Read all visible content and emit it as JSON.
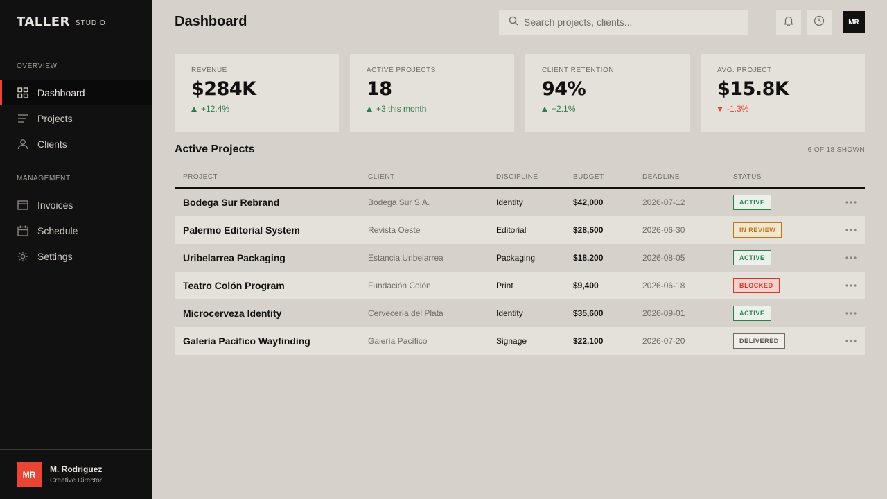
{
  "brand": {
    "name": "TALLER",
    "sub": "STUDIO"
  },
  "sidebar": {
    "sections": [
      {
        "label": "OVERVIEW",
        "items": [
          {
            "label": "Dashboard",
            "icon": "grid-icon",
            "active": true
          },
          {
            "label": "Projects",
            "icon": "list-icon"
          },
          {
            "label": "Clients",
            "icon": "person-icon"
          }
        ]
      },
      {
        "label": "MANAGEMENT",
        "items": [
          {
            "label": "Invoices",
            "icon": "invoice-icon"
          },
          {
            "label": "Schedule",
            "icon": "calendar-icon"
          },
          {
            "label": "Settings",
            "icon": "gear-icon"
          }
        ]
      }
    ],
    "user": {
      "initials": "MR",
      "name": "M. Rodriguez",
      "role": "Creative Director"
    }
  },
  "header": {
    "title": "Dashboard",
    "search_placeholder": "Search projects, clients...",
    "avatar_initials": "MR"
  },
  "kpis": [
    {
      "label": "REVENUE",
      "value": "$284K",
      "delta": "+12.4%",
      "trend": "up"
    },
    {
      "label": "ACTIVE PROJECTS",
      "value": "18",
      "delta": "+3 this month",
      "trend": "up"
    },
    {
      "label": "CLIENT RETENTION",
      "value": "94%",
      "delta": "+2.1%",
      "trend": "up"
    },
    {
      "label": "AVG. PROJECT",
      "value": "$15.8K",
      "delta": "-1.3%",
      "trend": "down"
    }
  ],
  "projects": {
    "title": "Active Projects",
    "shown": "6 OF 18 SHOWN",
    "columns": [
      "PROJECT",
      "CLIENT",
      "DISCIPLINE",
      "BUDGET",
      "DEADLINE",
      "STATUS"
    ],
    "rows": [
      {
        "project": "Bodega Sur Rebrand",
        "client": "Bodega Sur S.A.",
        "discipline": "Identity",
        "budget": "$42,000",
        "deadline": "2026-07-12",
        "status": "ACTIVE"
      },
      {
        "project": "Palermo Editorial System",
        "client": "Revista Oeste",
        "discipline": "Editorial",
        "budget": "$28,500",
        "deadline": "2026-06-30",
        "status": "IN REVIEW"
      },
      {
        "project": "Uribelarrea Packaging",
        "client": "Estancia Uribelarrea",
        "discipline": "Packaging",
        "budget": "$18,200",
        "deadline": "2026-08-05",
        "status": "ACTIVE"
      },
      {
        "project": "Teatro Colón Program",
        "client": "Fundación Colón",
        "discipline": "Print",
        "budget": "$9,400",
        "deadline": "2026-06-18",
        "status": "BLOCKED"
      },
      {
        "project": "Microcerveza Identity",
        "client": "Cervecería del Plata",
        "discipline": "Identity",
        "budget": "$35,600",
        "deadline": "2026-09-01",
        "status": "ACTIVE"
      },
      {
        "project": "Galería Pacífico Wayfinding",
        "client": "Galería Pacífico",
        "discipline": "Signage",
        "budget": "$22,100",
        "deadline": "2026-07-20",
        "status": "DELIVERED"
      }
    ]
  },
  "colors": {
    "accent": "#e94535",
    "positive": "#2e7d4f",
    "warning": "#b7791f",
    "sidebar_bg": "#111111",
    "page_bg": "#d6d2cb",
    "card_bg": "#e4e0da"
  }
}
